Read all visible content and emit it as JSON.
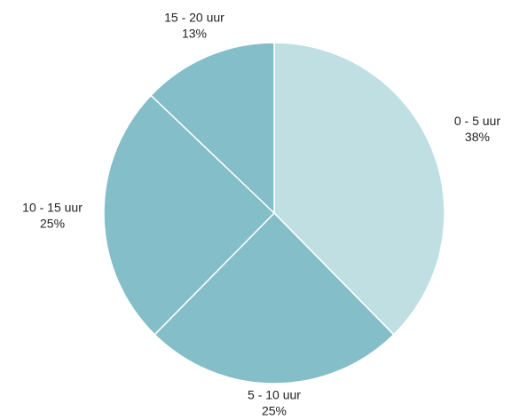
{
  "chart_data": {
    "type": "pie",
    "categories": [
      "0 - 5 uur",
      "5 - 10 uur",
      "10 - 15 uur",
      "15 - 20 uur"
    ],
    "values": [
      38,
      25,
      25,
      13
    ],
    "value_labels": [
      "38%",
      "25%",
      "25%",
      "13%"
    ],
    "colors": [
      "#c0dfe3",
      "#84bec8",
      "#84bec8",
      "#84bec8"
    ]
  }
}
